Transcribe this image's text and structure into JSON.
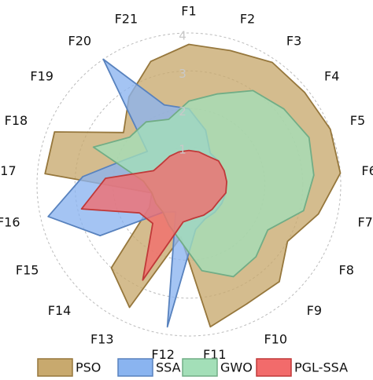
{
  "chart_data": {
    "type": "radar",
    "categories": [
      "F1",
      "F2",
      "F3",
      "F4",
      "F5",
      "F6",
      "F7",
      "F8",
      "F9",
      "F10",
      "F11",
      "F12",
      "F13",
      "F14",
      "F15",
      "F16",
      "F17",
      "F18",
      "F19",
      "F20",
      "F21"
    ],
    "ylim": [
      0,
      4
    ],
    "yticks": [
      1,
      2,
      3,
      4
    ],
    "grid": true,
    "legend": "bottom",
    "series": [
      {
        "name": "PSO",
        "color": "#c8a96e",
        "values": [
          3.7,
          3.7,
          3.9,
          3.9,
          4.0,
          4.0,
          3.5,
          3.0,
          3.5,
          3.5,
          3.8,
          1.4,
          3.6,
          3.0,
          1.2,
          1.0,
          3.8,
          3.8,
          2.2,
          2.8,
          3.4
        ]
      },
      {
        "name": "SSA",
        "color": "#8ab4f0",
        "values": [
          2.0,
          1.5,
          1.0,
          1.0,
          1.0,
          1.0,
          1.0,
          1.0,
          1.0,
          1.0,
          1.2,
          3.8,
          0.8,
          1.0,
          2.7,
          3.8,
          2.8,
          1.8,
          1.4,
          4.0,
          2.2
        ]
      },
      {
        "name": "GWO",
        "color": "#a3dfb8",
        "values": [
          2.2,
          2.5,
          3.0,
          3.2,
          3.4,
          3.3,
          3.1,
          2.4,
          2.6,
          2.7,
          2.3,
          1.5,
          1.2,
          1.0,
          1.0,
          1.0,
          1.2,
          2.7,
          2.0,
          2.0,
          1.8
        ]
      },
      {
        "name": "PGL-SSA",
        "color": "#f26b6b",
        "values": [
          0.9,
          0.9,
          0.9,
          1.0,
          1.0,
          1.0,
          1.0,
          0.9,
          0.9,
          0.9,
          0.9,
          1.0,
          2.8,
          1.4,
          1.5,
          2.9,
          2.2,
          1.0,
          0.9,
          0.9,
          0.9
        ]
      }
    ]
  }
}
